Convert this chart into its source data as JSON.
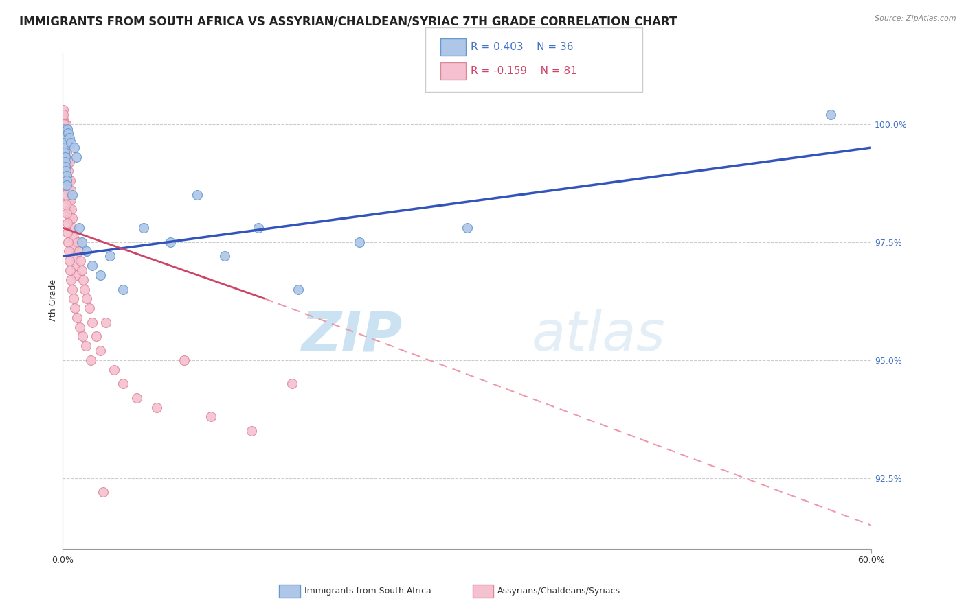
{
  "title": "IMMIGRANTS FROM SOUTH AFRICA VS ASSYRIAN/CHALDEAN/SYRIAC 7TH GRADE CORRELATION CHART",
  "source_text": "Source: ZipAtlas.com",
  "ylabel": "7th Grade",
  "xlim": [
    0.0,
    60.0
  ],
  "ylim": [
    91.0,
    101.5
  ],
  "x_tick_labels": [
    "0.0%",
    "60.0%"
  ],
  "x_tick_positions": [
    0.0,
    60.0
  ],
  "y_tick_labels": [
    "92.5%",
    "95.0%",
    "97.5%",
    "100.0%"
  ],
  "y_tick_positions": [
    92.5,
    95.0,
    97.5,
    100.0
  ],
  "grid_color": "#cccccc",
  "background_color": "#ffffff",
  "blue_scatter_x": [
    0.05,
    0.07,
    0.08,
    0.1,
    0.12,
    0.15,
    0.18,
    0.2,
    0.22,
    0.25,
    0.28,
    0.3,
    0.32,
    0.35,
    0.4,
    0.5,
    0.6,
    0.7,
    0.85,
    1.0,
    1.2,
    1.4,
    1.8,
    2.2,
    2.8,
    3.5,
    4.5,
    6.0,
    8.0,
    10.0,
    12.0,
    14.5,
    17.5,
    22.0,
    30.0,
    57.0
  ],
  "blue_scatter_y": [
    99.9,
    99.8,
    99.7,
    99.6,
    99.5,
    99.4,
    99.3,
    99.2,
    99.1,
    99.0,
    98.9,
    98.8,
    98.7,
    99.9,
    99.8,
    99.7,
    99.6,
    98.5,
    99.5,
    99.3,
    97.8,
    97.5,
    97.3,
    97.0,
    96.8,
    97.2,
    96.5,
    97.8,
    97.5,
    98.5,
    97.2,
    97.8,
    96.5,
    97.5,
    97.8,
    100.2
  ],
  "pink_scatter_x": [
    0.04,
    0.06,
    0.08,
    0.1,
    0.12,
    0.14,
    0.16,
    0.18,
    0.2,
    0.22,
    0.25,
    0.28,
    0.3,
    0.32,
    0.35,
    0.38,
    0.4,
    0.42,
    0.45,
    0.48,
    0.5,
    0.52,
    0.55,
    0.58,
    0.6,
    0.65,
    0.7,
    0.75,
    0.8,
    0.85,
    0.9,
    0.95,
    1.0,
    1.1,
    1.2,
    1.3,
    1.4,
    1.5,
    1.6,
    1.8,
    2.0,
    2.2,
    2.5,
    2.8,
    3.2,
    3.8,
    4.5,
    5.5,
    7.0,
    9.0,
    11.0,
    14.0,
    17.0,
    0.05,
    0.07,
    0.09,
    0.11,
    0.13,
    0.15,
    0.17,
    0.19,
    0.21,
    0.23,
    0.26,
    0.29,
    0.33,
    0.36,
    0.41,
    0.46,
    0.51,
    0.56,
    0.62,
    0.72,
    0.82,
    0.92,
    1.05,
    1.25,
    1.45,
    1.7,
    2.1,
    3.0
  ],
  "pink_scatter_y": [
    100.3,
    100.1,
    99.9,
    99.7,
    99.5,
    100.0,
    99.8,
    99.6,
    99.4,
    99.2,
    100.0,
    99.8,
    99.6,
    99.4,
    99.2,
    99.0,
    98.8,
    98.6,
    98.4,
    98.2,
    98.0,
    99.2,
    98.8,
    98.6,
    98.4,
    98.2,
    98.0,
    97.8,
    97.6,
    97.4,
    97.2,
    97.0,
    96.8,
    97.5,
    97.3,
    97.1,
    96.9,
    96.7,
    96.5,
    96.3,
    96.1,
    95.8,
    95.5,
    95.2,
    95.8,
    94.8,
    94.5,
    94.2,
    94.0,
    95.0,
    93.8,
    93.5,
    94.5,
    100.2,
    100.0,
    99.8,
    99.6,
    99.4,
    99.3,
    99.1,
    98.9,
    98.7,
    98.5,
    98.3,
    98.1,
    97.9,
    97.7,
    97.5,
    97.3,
    97.1,
    96.9,
    96.7,
    96.5,
    96.3,
    96.1,
    95.9,
    95.7,
    95.5,
    95.3,
    95.0,
    92.2
  ],
  "blue_color": "#aec6e8",
  "blue_edge_color": "#6699cc",
  "pink_color": "#f5c0d0",
  "pink_edge_color": "#dd8899",
  "blue_line_color": "#3355bb",
  "pink_line_color": "#cc4466",
  "pink_line_dash_color": "#ee99aa",
  "legend_r_blue": "R = 0.403",
  "legend_n_blue": "N = 36",
  "legend_r_pink": "R = -0.159",
  "legend_n_pink": "N = 81",
  "watermark_zip": "ZIP",
  "watermark_atlas": "atlas",
  "watermark_color": "#d0e8f0",
  "marker_size": 100,
  "title_fontsize": 12,
  "axis_label_fontsize": 9,
  "tick_fontsize": 9,
  "legend_fontsize": 11,
  "blue_line_y0": 97.2,
  "blue_line_y1": 99.5,
  "pink_line_x0": 0.0,
  "pink_line_y0": 97.8,
  "pink_line_solid_x1": 15.0,
  "pink_line_solid_y1": 96.3,
  "pink_line_dash_x1": 60.0,
  "pink_line_dash_y1": 91.5
}
